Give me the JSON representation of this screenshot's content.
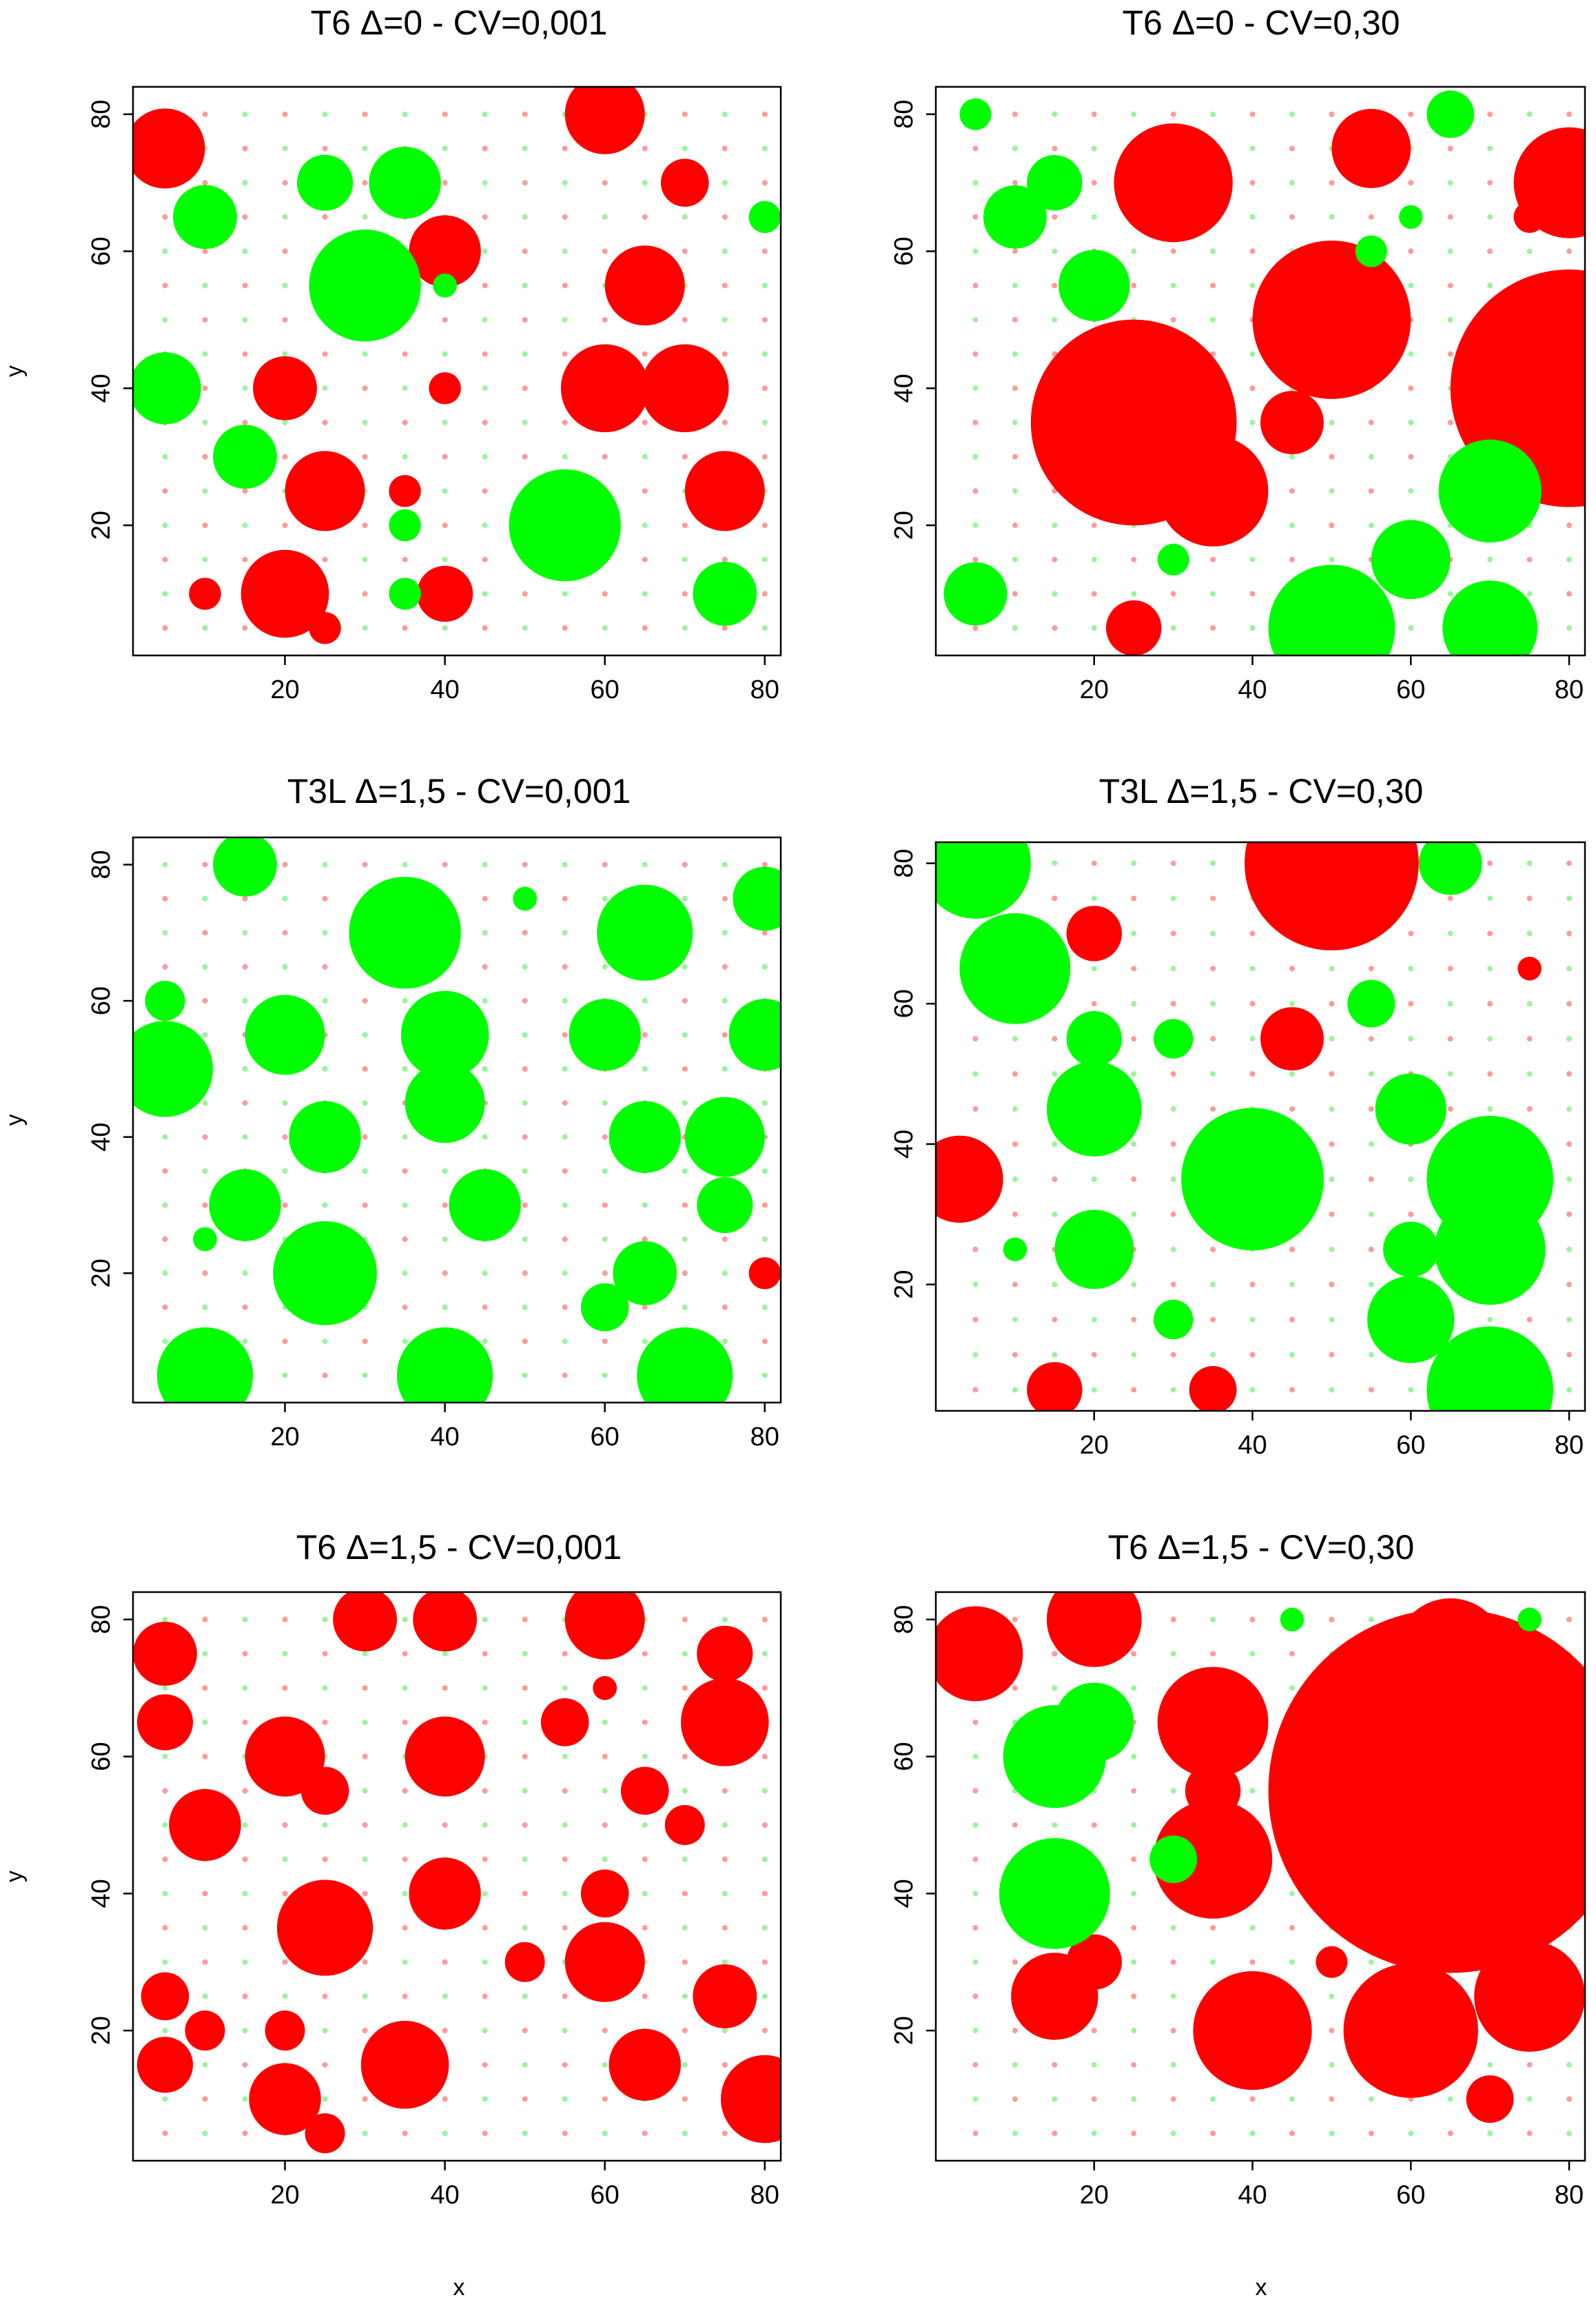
{
  "chart_data": [
    {
      "type": "scatter",
      "title": "T6 Δ=0 - CV=0,001",
      "xlabel": "",
      "ylabel": "y",
      "xlim": [
        1,
        82
      ],
      "ylim": [
        1,
        84
      ],
      "xticks": [
        20,
        40,
        60,
        80
      ],
      "yticks": [
        20,
        40,
        60,
        80
      ],
      "colors": {
        "positive": "#00ff00",
        "negative": "#ff0000"
      },
      "series": [
        {
          "name": "",
          "color": "#ff0000",
          "points": [
            {
              "x": 5,
              "y": 75,
              "r": 5
            },
            {
              "x": 60,
              "y": 80,
              "r": 5
            },
            {
              "x": 70,
              "y": 70,
              "r": 3
            },
            {
              "x": 40,
              "y": 60,
              "r": 4.5
            },
            {
              "x": 65,
              "y": 55,
              "r": 5
            },
            {
              "x": 20,
              "y": 40,
              "r": 4
            },
            {
              "x": 40,
              "y": 40,
              "r": 2
            },
            {
              "x": 60,
              "y": 40,
              "r": 5.5
            },
            {
              "x": 70,
              "y": 40,
              "r": 5.5
            },
            {
              "x": 25,
              "y": 25,
              "r": 5
            },
            {
              "x": 35,
              "y": 25,
              "r": 2
            },
            {
              "x": 75,
              "y": 25,
              "r": 5
            },
            {
              "x": 20,
              "y": 10,
              "r": 5.5
            },
            {
              "x": 40,
              "y": 10,
              "r": 3.5
            },
            {
              "x": 10,
              "y": 10,
              "r": 2
            },
            {
              "x": 25,
              "y": 5,
              "r": 2
            }
          ]
        },
        {
          "name": "",
          "color": "#00ff00",
          "points": [
            {
              "x": 10,
              "y": 65,
              "r": 4
            },
            {
              "x": 25,
              "y": 70,
              "r": 3.5
            },
            {
              "x": 35,
              "y": 70,
              "r": 4.5
            },
            {
              "x": 30,
              "y": 55,
              "r": 7
            },
            {
              "x": 5,
              "y": 40,
              "r": 4.5
            },
            {
              "x": 15,
              "y": 30,
              "r": 4
            },
            {
              "x": 55,
              "y": 20,
              "r": 7
            },
            {
              "x": 75,
              "y": 10,
              "r": 4
            },
            {
              "x": 35,
              "y": 20,
              "r": 2
            },
            {
              "x": 35,
              "y": 10,
              "r": 2
            },
            {
              "x": 80,
              "y": 65,
              "r": 2
            },
            {
              "x": 40,
              "y": 55,
              "r": 1.5
            }
          ]
        }
      ]
    },
    {
      "type": "scatter",
      "title": "T6 Δ=0 - CV=0,30",
      "xlabel": "",
      "ylabel": "",
      "xlim": [
        0,
        82
      ],
      "ylim": [
        1,
        84
      ],
      "xticks": [
        20,
        40,
        60,
        80
      ],
      "yticks": [
        20,
        40,
        60,
        80
      ],
      "series": [
        {
          "name": "",
          "color": "#ff0000",
          "points": [
            {
              "x": 25,
              "y": 35,
              "r": 13
            },
            {
              "x": 35,
              "y": 25,
              "r": 7
            },
            {
              "x": 50,
              "y": 50,
              "r": 10
            },
            {
              "x": 80,
              "y": 40,
              "r": 15
            },
            {
              "x": 30,
              "y": 70,
              "r": 7.5
            },
            {
              "x": 55,
              "y": 75,
              "r": 5
            },
            {
              "x": 80,
              "y": 70,
              "r": 7
            },
            {
              "x": 45,
              "y": 35,
              "r": 4
            },
            {
              "x": 25,
              "y": 5,
              "r": 3.5
            },
            {
              "x": 75,
              "y": 65,
              "r": 2
            },
            {
              "x": 75,
              "y": 35,
              "r": 1.5
            }
          ]
        },
        {
          "name": "",
          "color": "#00ff00",
          "points": [
            {
              "x": 10,
              "y": 65,
              "r": 4
            },
            {
              "x": 15,
              "y": 70,
              "r": 3.5
            },
            {
              "x": 20,
              "y": 55,
              "r": 4.5
            },
            {
              "x": 70,
              "y": 25,
              "r": 6.5
            },
            {
              "x": 60,
              "y": 15,
              "r": 5
            },
            {
              "x": 50,
              "y": 5,
              "r": 8
            },
            {
              "x": 70,
              "y": 5,
              "r": 6
            },
            {
              "x": 5,
              "y": 10,
              "r": 4
            },
            {
              "x": 65,
              "y": 80,
              "r": 3
            },
            {
              "x": 55,
              "y": 60,
              "r": 2
            },
            {
              "x": 5,
              "y": 80,
              "r": 2
            },
            {
              "x": 30,
              "y": 15,
              "r": 2
            },
            {
              "x": 60,
              "y": 65,
              "r": 1.5
            }
          ]
        }
      ]
    },
    {
      "type": "scatter",
      "title": "T3L Δ=1,5 - CV=0,001",
      "xlabel": "",
      "ylabel": "y",
      "xlim": [
        1,
        82
      ],
      "ylim": [
        1,
        84
      ],
      "xticks": [
        20,
        40,
        60,
        80
      ],
      "yticks": [
        20,
        40,
        60,
        80
      ],
      "series": [
        {
          "name": "",
          "color": "#00ff00",
          "points": [
            {
              "x": 15,
              "y": 80,
              "r": 4
            },
            {
              "x": 35,
              "y": 70,
              "r": 7
            },
            {
              "x": 65,
              "y": 70,
              "r": 6
            },
            {
              "x": 80,
              "y": 75,
              "r": 4
            },
            {
              "x": 5,
              "y": 60,
              "r": 2.5
            },
            {
              "x": 5,
              "y": 50,
              "r": 6
            },
            {
              "x": 20,
              "y": 55,
              "r": 5
            },
            {
              "x": 40,
              "y": 55,
              "r": 5.5
            },
            {
              "x": 40,
              "y": 45,
              "r": 5
            },
            {
              "x": 60,
              "y": 55,
              "r": 4.5
            },
            {
              "x": 80,
              "y": 55,
              "r": 4.5
            },
            {
              "x": 25,
              "y": 40,
              "r": 4.5
            },
            {
              "x": 65,
              "y": 40,
              "r": 4.5
            },
            {
              "x": 75,
              "y": 40,
              "r": 5
            },
            {
              "x": 15,
              "y": 30,
              "r": 4.5
            },
            {
              "x": 45,
              "y": 30,
              "r": 4.5
            },
            {
              "x": 75,
              "y": 30,
              "r": 3.5
            },
            {
              "x": 25,
              "y": 20,
              "r": 6.5
            },
            {
              "x": 65,
              "y": 20,
              "r": 4
            },
            {
              "x": 60,
              "y": 15,
              "r": 3
            },
            {
              "x": 10,
              "y": 5,
              "r": 6
            },
            {
              "x": 40,
              "y": 5,
              "r": 6
            },
            {
              "x": 70,
              "y": 5,
              "r": 6
            },
            {
              "x": 50,
              "y": 75,
              "r": 1.5
            },
            {
              "x": 10,
              "y": 25,
              "r": 1.5
            }
          ]
        },
        {
          "name": "",
          "color": "#ff0000",
          "points": [
            {
              "x": 80,
              "y": 20,
              "r": 2
            }
          ]
        }
      ]
    },
    {
      "type": "scatter",
      "title": "T3L Δ=1,5 - CV=0,30",
      "xlabel": "",
      "ylabel": "",
      "xlim": [
        0,
        82
      ],
      "ylim": [
        2,
        83
      ],
      "xticks": [
        20,
        40,
        60,
        80
      ],
      "yticks": [
        20,
        40,
        60,
        80
      ],
      "series": [
        {
          "name": "",
          "color": "#00ff00",
          "points": [
            {
              "x": 5,
              "y": 80,
              "r": 7
            },
            {
              "x": 10,
              "y": 65,
              "r": 7
            },
            {
              "x": 20,
              "y": 55,
              "r": 3.5
            },
            {
              "x": 20,
              "y": 45,
              "r": 6
            },
            {
              "x": 40,
              "y": 35,
              "r": 9
            },
            {
              "x": 60,
              "y": 45,
              "r": 4.5
            },
            {
              "x": 70,
              "y": 35,
              "r": 8
            },
            {
              "x": 70,
              "y": 25,
              "r": 7
            },
            {
              "x": 60,
              "y": 25,
              "r": 3.5
            },
            {
              "x": 60,
              "y": 15,
              "r": 5.5
            },
            {
              "x": 70,
              "y": 5,
              "r": 8
            },
            {
              "x": 20,
              "y": 25,
              "r": 5
            },
            {
              "x": 30,
              "y": 55,
              "r": 2.5
            },
            {
              "x": 55,
              "y": 60,
              "r": 3
            },
            {
              "x": 65,
              "y": 80,
              "r": 4
            },
            {
              "x": 30,
              "y": 15,
              "r": 2.5
            },
            {
              "x": 10,
              "y": 25,
              "r": 1.5
            }
          ]
        },
        {
          "name": "",
          "color": "#ff0000",
          "points": [
            {
              "x": 50,
              "y": 80,
              "r": 11
            },
            {
              "x": 20,
              "y": 70,
              "r": 3.5
            },
            {
              "x": 45,
              "y": 55,
              "r": 4
            },
            {
              "x": 3,
              "y": 35,
              "r": 5.5
            },
            {
              "x": 15,
              "y": 5,
              "r": 3.5
            },
            {
              "x": 35,
              "y": 5,
              "r": 3
            },
            {
              "x": 75,
              "y": 65,
              "r": 1.5
            }
          ]
        }
      ]
    },
    {
      "type": "scatter",
      "title": "T6 Δ=1,5 - CV=0,001",
      "xlabel": "",
      "ylabel": "y",
      "xlim": [
        1,
        82
      ],
      "ylim": [
        1,
        84
      ],
      "xticks": [
        20,
        40,
        60,
        80
      ],
      "yticks": [
        20,
        40,
        60,
        80
      ],
      "series": [
        {
          "name": "",
          "color": "#ff0000",
          "points": [
            {
              "x": 5,
              "y": 75,
              "r": 4
            },
            {
              "x": 30,
              "y": 80,
              "r": 4
            },
            {
              "x": 40,
              "y": 80,
              "r": 4
            },
            {
              "x": 60,
              "y": 80,
              "r": 5
            },
            {
              "x": 75,
              "y": 75,
              "r": 3.5
            },
            {
              "x": 5,
              "y": 65,
              "r": 3.5
            },
            {
              "x": 55,
              "y": 65,
              "r": 3
            },
            {
              "x": 75,
              "y": 65,
              "r": 5.5
            },
            {
              "x": 20,
              "y": 60,
              "r": 5
            },
            {
              "x": 40,
              "y": 60,
              "r": 5
            },
            {
              "x": 25,
              "y": 55,
              "r": 3
            },
            {
              "x": 65,
              "y": 55,
              "r": 3
            },
            {
              "x": 10,
              "y": 50,
              "r": 4.5
            },
            {
              "x": 70,
              "y": 50,
              "r": 2.5
            },
            {
              "x": 60,
              "y": 40,
              "r": 3
            },
            {
              "x": 40,
              "y": 40,
              "r": 4.5
            },
            {
              "x": 25,
              "y": 35,
              "r": 6
            },
            {
              "x": 50,
              "y": 30,
              "r": 2.5
            },
            {
              "x": 60,
              "y": 30,
              "r": 5
            },
            {
              "x": 5,
              "y": 25,
              "r": 3
            },
            {
              "x": 75,
              "y": 25,
              "r": 4
            },
            {
              "x": 10,
              "y": 20,
              "r": 2.5
            },
            {
              "x": 20,
              "y": 20,
              "r": 2.5
            },
            {
              "x": 5,
              "y": 15,
              "r": 3.5
            },
            {
              "x": 35,
              "y": 15,
              "r": 5.5
            },
            {
              "x": 65,
              "y": 15,
              "r": 4.5
            },
            {
              "x": 20,
              "y": 10,
              "r": 4.5
            },
            {
              "x": 80,
              "y": 10,
              "r": 5.5
            },
            {
              "x": 25,
              "y": 5,
              "r": 2.5
            },
            {
              "x": 60,
              "y": 70,
              "r": 1.5
            }
          ]
        }
      ]
    },
    {
      "type": "scatter",
      "title": "T6 Δ=1,5 - CV=0,30",
      "xlabel": "",
      "ylabel": "",
      "xlim": [
        0,
        82
      ],
      "ylim": [
        1,
        84
      ],
      "xticks": [
        20,
        40,
        60,
        80
      ],
      "yticks": [
        20,
        40,
        60,
        80
      ],
      "series": [
        {
          "name": "",
          "color": "#ff0000",
          "points": [
            {
              "x": 65,
              "y": 55,
              "r": 23
            },
            {
              "x": 65,
              "y": 75,
              "r": 7
            },
            {
              "x": 5,
              "y": 75,
              "r": 6
            },
            {
              "x": 20,
              "y": 80,
              "r": 6
            },
            {
              "x": 35,
              "y": 65,
              "r": 7
            },
            {
              "x": 35,
              "y": 45,
              "r": 7.5
            },
            {
              "x": 40,
              "y": 20,
              "r": 7.5
            },
            {
              "x": 60,
              "y": 20,
              "r": 8.5
            },
            {
              "x": 75,
              "y": 25,
              "r": 7
            },
            {
              "x": 15,
              "y": 25,
              "r": 5.5
            },
            {
              "x": 20,
              "y": 30,
              "r": 3.5
            },
            {
              "x": 70,
              "y": 10,
              "r": 3
            },
            {
              "x": 50,
              "y": 30,
              "r": 2
            },
            {
              "x": 35,
              "y": 55,
              "r": 3.5
            },
            {
              "x": 80,
              "y": 70,
              "r": 2.5
            }
          ]
        },
        {
          "name": "",
          "color": "#00ff00",
          "points": [
            {
              "x": 20,
              "y": 65,
              "r": 5
            },
            {
              "x": 15,
              "y": 60,
              "r": 6.5
            },
            {
              "x": 15,
              "y": 40,
              "r": 7
            },
            {
              "x": 30,
              "y": 45,
              "r": 3
            },
            {
              "x": 45,
              "y": 80,
              "r": 1.5
            },
            {
              "x": 75,
              "y": 80,
              "r": 1.5
            }
          ]
        }
      ]
    }
  ]
}
